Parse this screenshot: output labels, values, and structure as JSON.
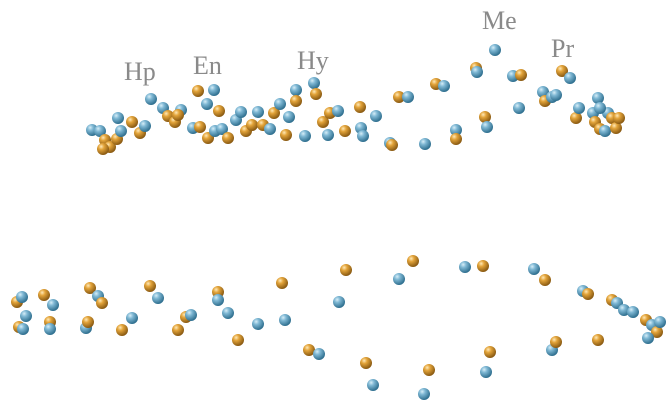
{
  "labels": {
    "hp": "Hp",
    "en": "En",
    "hy": "Hy",
    "me": "Me",
    "pr": "Pr"
  },
  "colors": {
    "blue": "#5f9fbf",
    "gold": "#d69a2e"
  }
}
